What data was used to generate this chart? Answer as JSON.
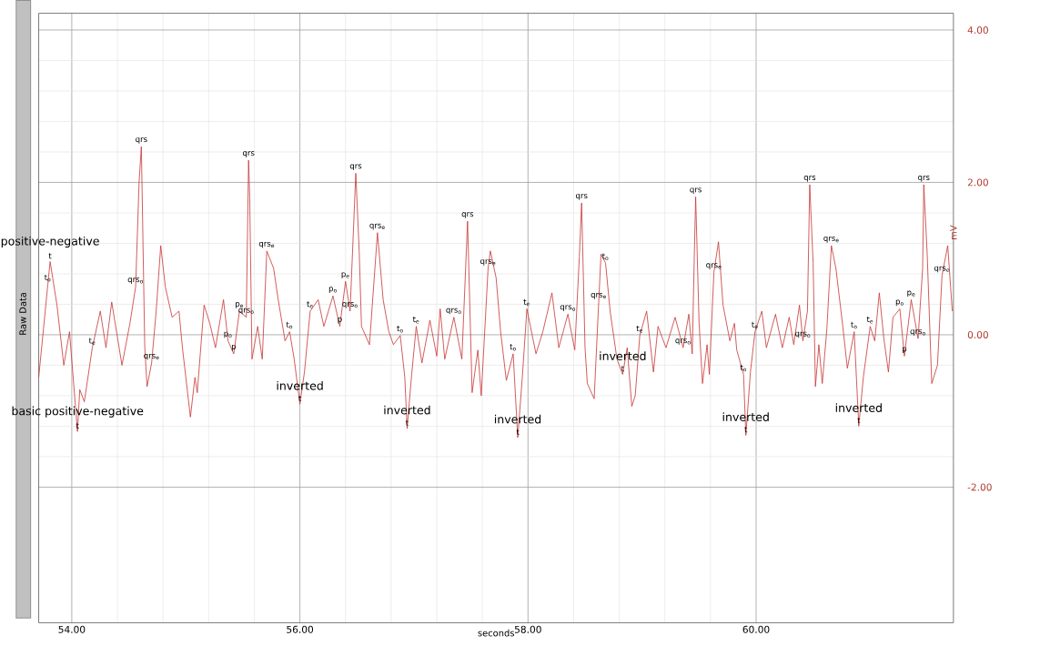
{
  "chart_data": {
    "type": "line",
    "title": "Raw Data",
    "xlabel": "seconds",
    "ylabel": "mV",
    "xlim": [
      53.71,
      61.73
    ],
    "ylim": [
      -3.78,
      4.22
    ],
    "xticks": [
      {
        "value": 54,
        "label": "54.00"
      },
      {
        "value": 56,
        "label": "56.00"
      },
      {
        "value": 58,
        "label": "58.00"
      },
      {
        "value": 60,
        "label": "60.00"
      }
    ],
    "yticks": [
      {
        "value": -2,
        "label": "-2.00"
      },
      {
        "value": 0,
        "label": "0.00"
      },
      {
        "value": 2,
        "label": "2.00"
      },
      {
        "value": 4,
        "label": "4.00"
      }
    ],
    "grid": true,
    "series": [
      {
        "color": "#c83232",
        "x": [
          53.71,
          53.79,
          53.81,
          53.87,
          53.93,
          53.98,
          54.05,
          54.07,
          54.11,
          54.18,
          54.25,
          54.3,
          54.35,
          54.44,
          54.51,
          54.56,
          54.59,
          54.61,
          54.64,
          54.66,
          54.7,
          54.74,
          54.78,
          54.82,
          54.88,
          54.94,
          54.97,
          55.04,
          55.08,
          55.1,
          55.16,
          55.21,
          55.26,
          55.33,
          55.37,
          55.42,
          55.47,
          55.53,
          55.55,
          55.56,
          55.58,
          55.63,
          55.67,
          55.71,
          55.77,
          55.81,
          55.87,
          55.91,
          55.95,
          56.0,
          56.04,
          56.09,
          56.16,
          56.21,
          56.29,
          56.35,
          56.4,
          56.44,
          56.49,
          56.52,
          56.54,
          56.61,
          56.68,
          56.73,
          56.78,
          56.82,
          56.88,
          56.92,
          56.94,
          56.98,
          57.02,
          57.07,
          57.14,
          57.2,
          57.23,
          57.27,
          57.35,
          57.42,
          57.47,
          57.51,
          57.56,
          57.59,
          57.65,
          57.67,
          57.72,
          57.76,
          57.81,
          57.87,
          57.91,
          57.95,
          57.99,
          58.07,
          58.13,
          58.21,
          58.27,
          58.35,
          58.41,
          58.45,
          58.47,
          58.5,
          58.52,
          58.58,
          58.62,
          58.64,
          58.68,
          58.72,
          58.78,
          58.83,
          58.87,
          58.91,
          58.94,
          58.98,
          59.04,
          59.1,
          59.14,
          59.21,
          59.29,
          59.36,
          59.41,
          59.44,
          59.46,
          59.47,
          59.5,
          59.53,
          59.57,
          59.59,
          59.63,
          59.67,
          59.71,
          59.77,
          59.81,
          59.83,
          59.89,
          59.91,
          59.95,
          59.99,
          60.05,
          60.09,
          60.17,
          60.23,
          60.29,
          60.33,
          60.38,
          60.41,
          60.45,
          60.47,
          60.5,
          60.52,
          60.55,
          60.58,
          60.62,
          60.66,
          60.7,
          60.76,
          60.8,
          60.86,
          60.9,
          60.94,
          61.0,
          61.04,
          61.08,
          61.12,
          61.16,
          61.2,
          61.26,
          61.3,
          61.36,
          61.42,
          61.46,
          61.47,
          61.5,
          61.54,
          61.59,
          61.63,
          61.68,
          61.72
        ],
        "values": [
          -0.56,
          0.66,
          0.96,
          0.39,
          -0.4,
          0.04,
          -1.27,
          -0.72,
          -0.88,
          -0.17,
          0.31,
          -0.17,
          0.43,
          -0.4,
          0.15,
          0.63,
          2.0,
          2.47,
          -0.17,
          -0.68,
          -0.37,
          0.31,
          1.17,
          0.63,
          0.23,
          0.31,
          -0.17,
          -1.08,
          -0.56,
          -0.76,
          0.39,
          0.15,
          -0.17,
          0.46,
          -0.08,
          -0.25,
          0.31,
          0.23,
          2.29,
          1.81,
          -0.32,
          0.11,
          -0.32,
          1.1,
          0.87,
          0.46,
          -0.08,
          0.04,
          -0.32,
          -0.91,
          -0.49,
          0.31,
          0.46,
          0.11,
          0.51,
          0.11,
          0.7,
          0.31,
          2.12,
          1.1,
          0.11,
          -0.13,
          1.34,
          0.46,
          0.04,
          -0.13,
          -0.01,
          -0.56,
          -1.23,
          -0.52,
          0.11,
          -0.37,
          0.19,
          -0.28,
          0.34,
          -0.32,
          0.23,
          -0.32,
          1.49,
          -0.76,
          -0.2,
          -0.8,
          0.87,
          1.1,
          0.75,
          0.04,
          -0.6,
          -0.25,
          -1.35,
          -0.56,
          0.34,
          -0.25,
          0.04,
          0.55,
          -0.17,
          0.27,
          -0.2,
          1.02,
          1.73,
          -0.17,
          -0.64,
          -0.84,
          0.43,
          1.06,
          0.94,
          0.31,
          -0.32,
          -0.52,
          -0.17,
          -0.94,
          -0.8,
          -0.01,
          0.31,
          -0.49,
          0.11,
          -0.17,
          0.23,
          -0.17,
          0.27,
          -0.25,
          1.17,
          1.81,
          0.15,
          -0.64,
          -0.13,
          -0.52,
          0.82,
          1.22,
          0.39,
          -0.08,
          0.15,
          -0.2,
          -0.52,
          -1.32,
          -0.49,
          0.04,
          0.31,
          -0.17,
          0.27,
          -0.17,
          0.23,
          -0.13,
          0.39,
          -0.08,
          0.31,
          1.97,
          0.94,
          -0.68,
          -0.13,
          -0.64,
          0.07,
          1.17,
          0.87,
          0.11,
          -0.44,
          0.04,
          -1.2,
          -0.56,
          0.11,
          -0.08,
          0.55,
          -0.05,
          -0.49,
          0.23,
          0.34,
          -0.28,
          0.46,
          -0.05,
          0.87,
          1.97,
          1.06,
          -0.64,
          -0.4,
          0.78,
          1.17,
          0.31
        ]
      }
    ],
    "annotations": [
      {
        "text": "positive-negative",
        "x": 53.81,
        "y": 0.96
      },
      {
        "text": "t",
        "x": 53.81,
        "y": 0.96
      },
      {
        "text": "t$_{o}$",
        "x": 53.79,
        "y": 0.66
      },
      {
        "text": "basic positive-negative",
        "x": 54.05,
        "y": -1.27
      },
      {
        "text": "t",
        "x": 54.05,
        "y": -1.27
      },
      {
        "text": "t$_{e}$",
        "x": 54.18,
        "y": -0.17
      },
      {
        "text": "qrs$_{o}$",
        "x": 54.56,
        "y": 0.63
      },
      {
        "text": "qrs",
        "x": 54.61,
        "y": 2.47
      },
      {
        "text": "qrs$_{e}$",
        "x": 54.7,
        "y": -0.37
      },
      {
        "text": "p$_{o}$",
        "x": 55.37,
        "y": -0.08
      },
      {
        "text": "p$_{e}$",
        "x": 55.47,
        "y": 0.31
      },
      {
        "text": "p",
        "x": 55.42,
        "y": -0.25
      },
      {
        "text": "qrs$_{o}$",
        "x": 55.53,
        "y": 0.23
      },
      {
        "text": "qrs",
        "x": 55.55,
        "y": 2.29
      },
      {
        "text": "qrs$_{e}$",
        "x": 55.71,
        "y": 1.1
      },
      {
        "text": "t$_{o}$",
        "x": 55.91,
        "y": 0.04
      },
      {
        "text": "inverted",
        "x": 56.0,
        "y": -0.91
      },
      {
        "text": "t",
        "x": 56.0,
        "y": -0.91
      },
      {
        "text": "t$_{e}$",
        "x": 56.09,
        "y": 0.31
      },
      {
        "text": "p$_{o}$",
        "x": 56.29,
        "y": 0.51
      },
      {
        "text": "p$_{e}$",
        "x": 56.4,
        "y": 0.7
      },
      {
        "text": "p",
        "x": 56.35,
        "y": 0.11
      },
      {
        "text": "qrs$_{o}$",
        "x": 56.44,
        "y": 0.31
      },
      {
        "text": "qrs",
        "x": 56.49,
        "y": 2.12
      },
      {
        "text": "qrs$_{e}$",
        "x": 56.68,
        "y": 1.34
      },
      {
        "text": "t$_{o}$",
        "x": 56.88,
        "y": -0.01
      },
      {
        "text": "t$_{e}$",
        "x": 57.02,
        "y": 0.11
      },
      {
        "text": "inverted",
        "x": 56.94,
        "y": -1.23
      },
      {
        "text": "t",
        "x": 56.94,
        "y": -1.23
      },
      {
        "text": "qrs$_{o}$",
        "x": 57.35,
        "y": 0.23
      },
      {
        "text": "qrs",
        "x": 57.47,
        "y": 1.49
      },
      {
        "text": "qrs$_{e}$",
        "x": 57.65,
        "y": 0.87
      },
      {
        "text": "t$_{o}$",
        "x": 57.87,
        "y": -0.25
      },
      {
        "text": "inverted",
        "x": 57.91,
        "y": -1.35
      },
      {
        "text": "t",
        "x": 57.91,
        "y": -1.35
      },
      {
        "text": "t$_{e}$",
        "x": 57.99,
        "y": 0.34
      },
      {
        "text": "qrs$_{o}$",
        "x": 58.35,
        "y": 0.27
      },
      {
        "text": "qrs",
        "x": 58.47,
        "y": 1.73
      },
      {
        "text": "qrs$_{e}$",
        "x": 58.62,
        "y": 0.43
      },
      {
        "text": "t$_{o}$",
        "x": 58.68,
        "y": 0.94
      },
      {
        "text": "inverted",
        "x": 58.83,
        "y": -0.52
      },
      {
        "text": "t",
        "x": 58.83,
        "y": -0.52
      },
      {
        "text": "t$_{e}$",
        "x": 58.98,
        "y": -0.01
      },
      {
        "text": "qrs$_{o}$",
        "x": 59.36,
        "y": -0.17
      },
      {
        "text": "qrs",
        "x": 59.47,
        "y": 1.81
      },
      {
        "text": "qrs$_{e}$",
        "x": 59.63,
        "y": 0.82
      },
      {
        "text": "t$_{o}$",
        "x": 59.89,
        "y": -0.52
      },
      {
        "text": "inverted",
        "x": 59.91,
        "y": -1.32
      },
      {
        "text": "t",
        "x": 59.91,
        "y": -1.32
      },
      {
        "text": "t$_{e}$",
        "x": 59.99,
        "y": 0.04
      },
      {
        "text": "qrs$_{o}$",
        "x": 60.41,
        "y": -0.08
      },
      {
        "text": "qrs",
        "x": 60.47,
        "y": 1.97
      },
      {
        "text": "qrs$_{e}$",
        "x": 60.66,
        "y": 1.17
      },
      {
        "text": "t$_{o}$",
        "x": 60.86,
        "y": 0.04
      },
      {
        "text": "t$_{e}$",
        "x": 61.0,
        "y": 0.11
      },
      {
        "text": "inverted",
        "x": 60.9,
        "y": -1.2
      },
      {
        "text": "t",
        "x": 60.9,
        "y": -1.2
      },
      {
        "text": "p$_{o}$",
        "x": 61.26,
        "y": 0.34
      },
      {
        "text": "p",
        "x": 61.3,
        "y": -0.28
      },
      {
        "text": "p$_{e}$",
        "x": 61.36,
        "y": 0.46
      },
      {
        "text": "qrs$_{o}$",
        "x": 61.42,
        "y": -0.05
      },
      {
        "text": "qrs",
        "x": 61.47,
        "y": 1.97
      },
      {
        "text": "qrs$_{e}$",
        "x": 61.63,
        "y": 0.78
      }
    ]
  }
}
